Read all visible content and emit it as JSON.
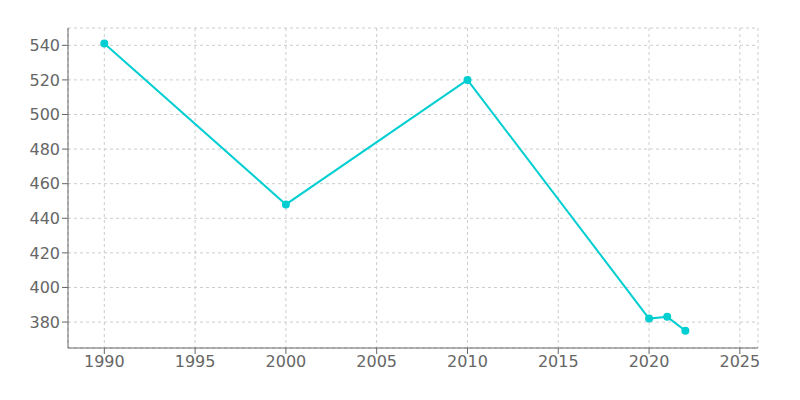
{
  "chart_data": {
    "type": "line",
    "x": [
      1990,
      2000,
      2010,
      2020,
      2021,
      2022
    ],
    "values": [
      541,
      448,
      520,
      382,
      383,
      375
    ],
    "color": "#00CED1",
    "marker": "circle",
    "xlim": [
      1988,
      2026
    ],
    "ylim": [
      365,
      550
    ],
    "xticks": [
      1990,
      1995,
      2000,
      2005,
      2010,
      2015,
      2020,
      2025
    ],
    "yticks": [
      380,
      400,
      420,
      440,
      460,
      480,
      500,
      520,
      540
    ],
    "grid": true
  }
}
